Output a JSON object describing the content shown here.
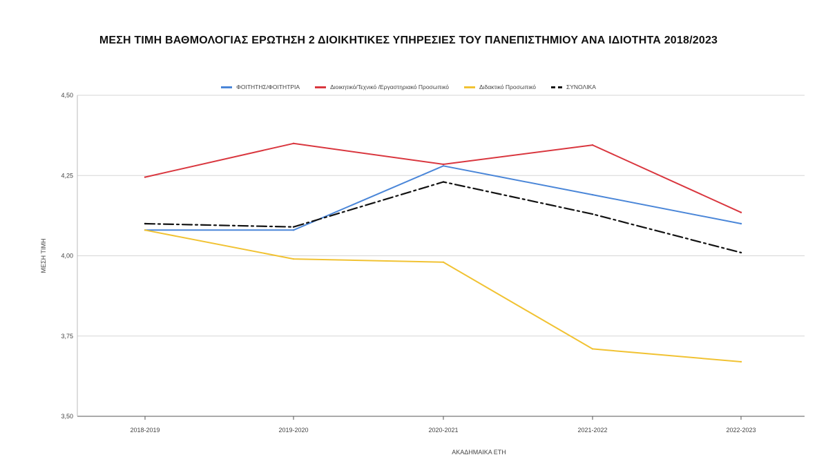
{
  "chart_data": {
    "type": "line",
    "title": "ΜΕΣΗ ΤΙΜΗ ΒΑΘΜΟΛΟΓΙΑΣ ΕΡΩΤΗΣΗ 2 ΔΙΟΙΚΗΤΙΚΕΣ ΥΠΗΡΕΣΙΕΣ ΤΟΥ ΠΑΝΕΠΙΣΤΗΜΙΟΥ ΑΝΑ ΙΔΙΟΤΗΤΑ 2018/2023",
    "xlabel": "ΑΚΑΔΗΜΑΙΚΑ ΕΤΗ",
    "ylabel": "ΜΕΣΗ ΤΙΜΗ",
    "categories": [
      "2018-2019",
      "2019-2020",
      "2020-2021",
      "2021-2022",
      "2022-2023"
    ],
    "ylim": [
      3.5,
      4.5
    ],
    "yticks": [
      "4,50",
      "4,25",
      "4,00",
      "3,75",
      "3,50"
    ],
    "ytick_values": [
      4.5,
      4.25,
      4.0,
      3.75,
      3.5
    ],
    "grid": "horizontal",
    "legend_position": "top",
    "series": [
      {
        "name": "ΦΟΙΤΗΤΗΣ/ΦΟΙΤΗΤΡΙΑ",
        "color": "#4a86d8",
        "dash": "solid",
        "values": [
          4.08,
          4.08,
          4.28,
          4.19,
          4.1
        ]
      },
      {
        "name": "Διοικητικό/Τεχνικό /Εργαστηριακό Προσωπικό",
        "color": "#d9363e",
        "dash": "solid",
        "values": [
          4.245,
          4.35,
          4.285,
          4.345,
          4.135
        ]
      },
      {
        "name": "Διδακτικό Προσωπικό",
        "color": "#f1c232",
        "dash": "solid",
        "values": [
          4.08,
          3.99,
          3.98,
          3.71,
          3.67
        ]
      },
      {
        "name": "ΣΥΝΟΛΙΚΑ",
        "color": "#111111",
        "dash": "dashdot",
        "values": [
          4.1,
          4.09,
          4.23,
          4.13,
          4.01
        ]
      }
    ]
  }
}
